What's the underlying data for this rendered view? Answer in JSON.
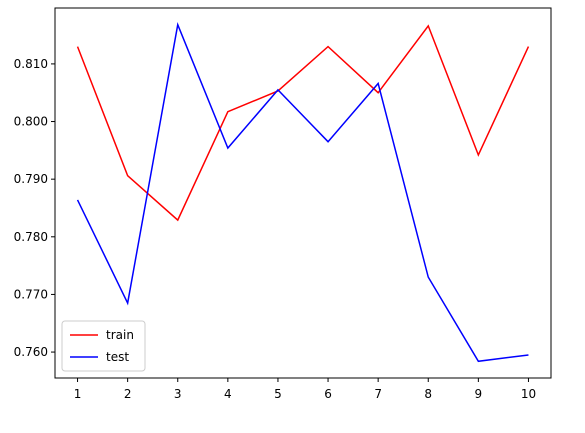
{
  "chart_data": {
    "type": "line",
    "x": [
      1,
      2,
      3,
      4,
      5,
      6,
      7,
      8,
      9,
      10
    ],
    "series": [
      {
        "name": "train",
        "color": "#ff0000",
        "values": [
          0.813,
          0.7906,
          0.7829,
          0.8017,
          0.8053,
          0.813,
          0.805,
          0.8166,
          0.7942,
          0.813
        ]
      },
      {
        "name": "test",
        "color": "#0000ff",
        "values": [
          0.7864,
          0.7685,
          0.8168,
          0.7954,
          0.8055,
          0.7965,
          0.8066,
          0.773,
          0.7584,
          0.7595
        ]
      }
    ],
    "xlim": [
      0.55,
      10.45
    ],
    "xticks": [
      1,
      2,
      3,
      4,
      5,
      6,
      7,
      8,
      9,
      10
    ],
    "ylim": [
      0.7555,
      0.8197
    ],
    "yticks": [
      {
        "value": 0.76,
        "label": "0.760"
      },
      {
        "value": 0.77,
        "label": "0.770"
      },
      {
        "value": 0.78,
        "label": "0.780"
      },
      {
        "value": 0.79,
        "label": "0.790"
      },
      {
        "value": 0.8,
        "label": "0.800"
      },
      {
        "value": 0.81,
        "label": "0.810"
      }
    ],
    "legend": "lower left"
  }
}
